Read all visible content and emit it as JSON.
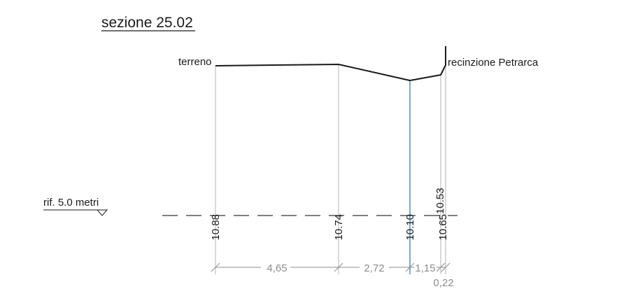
{
  "title": "sezione 25.02",
  "reference": {
    "label": "rif. 5.0 metri"
  },
  "profile": {
    "ground_label": "terreno",
    "fence_label": "recinzione Petrarca",
    "points": [
      {
        "id": "p1",
        "elevation": "10.88"
      },
      {
        "id": "p2",
        "elevation": "10.74"
      },
      {
        "id": "p3",
        "elevation": "10.10"
      },
      {
        "id": "p4",
        "elevation": "10.65"
      }
    ],
    "fence_top_elevation": "10.53"
  },
  "distances": [
    {
      "id": "d1",
      "value": "4,65"
    },
    {
      "id": "d2",
      "value": "2,72"
    },
    {
      "id": "d3",
      "value": "1,15"
    },
    {
      "id": "d4",
      "value": "0,22"
    }
  ],
  "colors": {
    "profile": "#1a1a1a",
    "vertical": "#b3b3b3",
    "water": "#1e73be",
    "dimension": "#8c8c8c"
  }
}
